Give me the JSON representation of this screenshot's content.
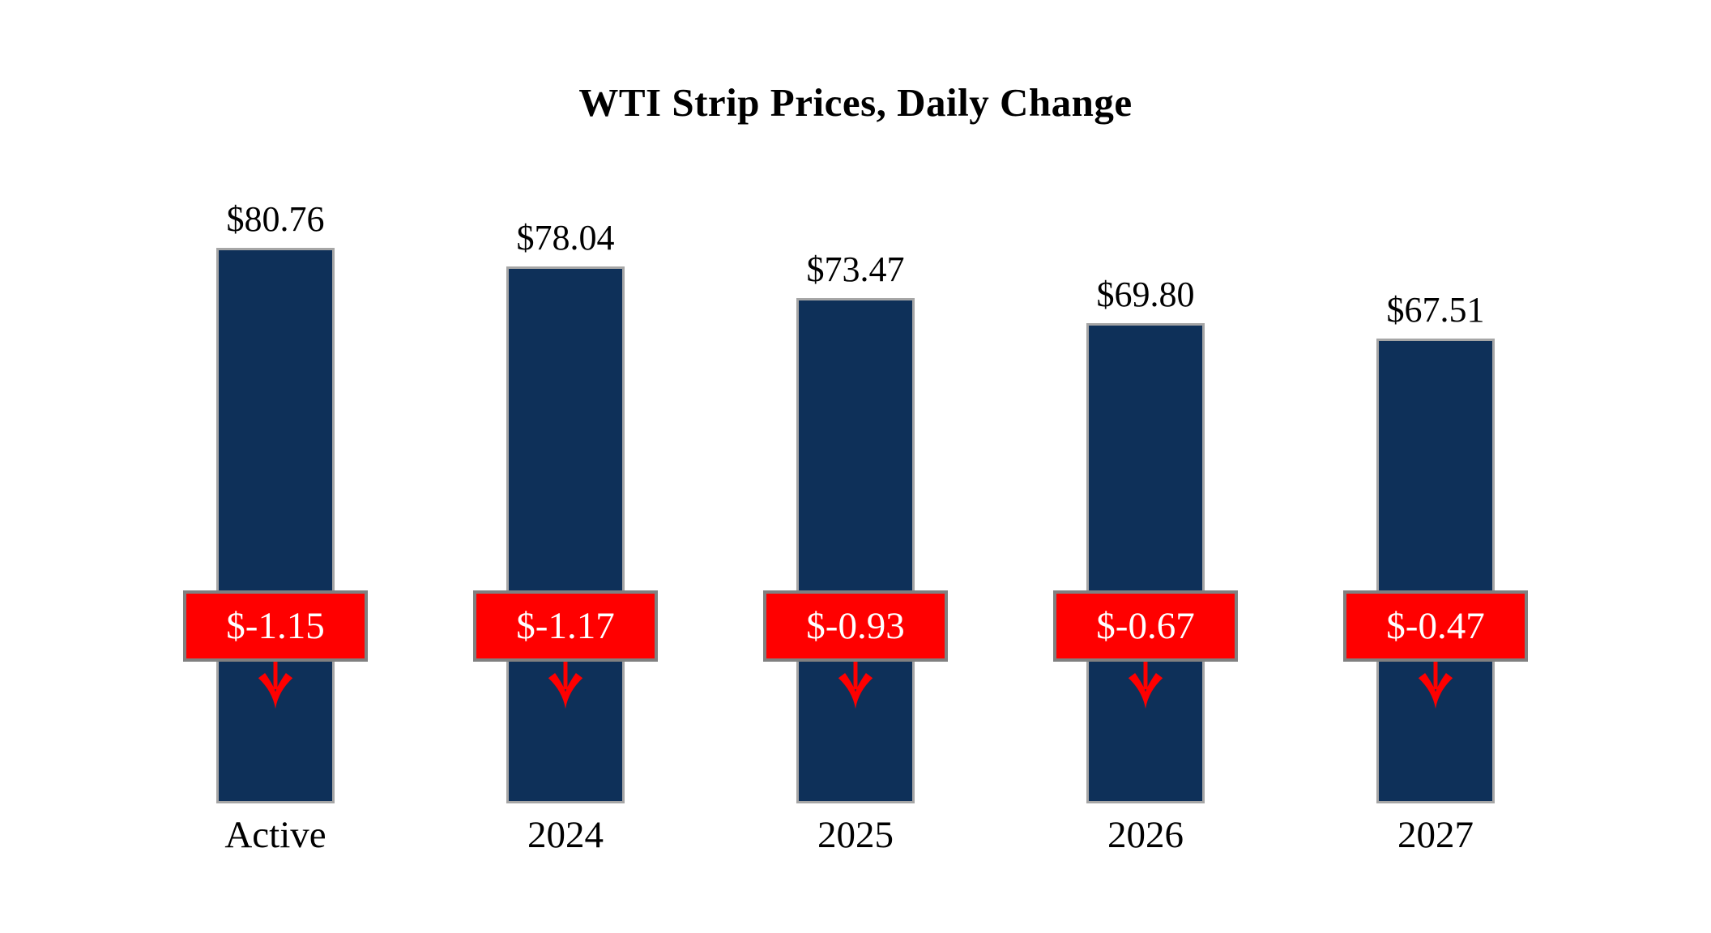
{
  "title": "WTI Strip Prices, Daily Change",
  "colors": {
    "bar": "#0e3059",
    "bar_border": "#a6a6a6",
    "badge_bg": "#ff0000",
    "badge_border": "#808080",
    "badge_text": "#ffffff",
    "arrow": "#ff0000",
    "text": "#000000",
    "background": "#ffffff"
  },
  "chart_data": {
    "type": "bar",
    "title": "WTI Strip Prices, Daily Change",
    "categories": [
      "Active",
      "2024",
      "2025",
      "2026",
      "2027"
    ],
    "series": [
      {
        "name": "strip_price",
        "values": [
          80.76,
          78.04,
          73.47,
          69.8,
          67.51
        ],
        "labels": [
          "$80.76",
          "$78.04",
          "$73.47",
          "$69.80",
          "$67.51"
        ]
      },
      {
        "name": "daily_change",
        "values": [
          -1.15,
          -1.17,
          -0.93,
          -0.67,
          -0.47
        ],
        "labels": [
          "$-1.15",
          "$-1.17",
          "$-0.93",
          "$-0.67",
          "$-0.47"
        ]
      }
    ],
    "ylim": [
      0,
      85
    ],
    "grid": false,
    "legend": "none",
    "annotations": "red badge with daily change and red down arrow overlaid on each bar"
  }
}
